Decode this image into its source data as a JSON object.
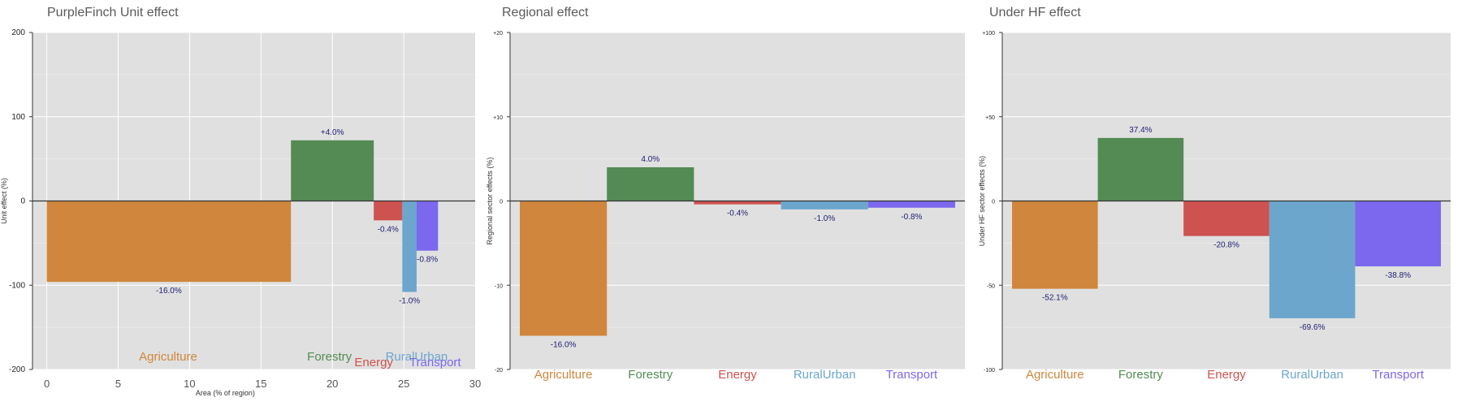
{
  "colors": {
    "Agriculture": "#D0863C",
    "Forestry": "#548B54",
    "Energy": "#CD5250",
    "RuralUrban": "#6CA6CD",
    "Transport": "#7B68EE",
    "panel_bg": "#E0E0E0",
    "label_text": "#1C1C72",
    "title_text": "#5A5A5A"
  },
  "chart_data": [
    {
      "type": "bar",
      "title": "PurpleFinch Unit effect",
      "xlabel": "Area (% of region)",
      "ylabel": "Unit effect (%)",
      "xlim": [
        -1,
        30
      ],
      "ylim": [
        -200,
        200
      ],
      "xticks": [
        0,
        5,
        10,
        15,
        20,
        25,
        30
      ],
      "yticks": [
        200,
        100,
        0,
        -100,
        -200
      ],
      "ytick_labels": [
        "200",
        "100",
        "0",
        "-100",
        "-200"
      ],
      "grid": true,
      "bars": [
        {
          "sector": "Agriculture",
          "x0": 0,
          "x1": 17.1,
          "value": -96,
          "label": "-16.0%"
        },
        {
          "sector": "Forestry",
          "x0": 17.1,
          "x1": 22.9,
          "value": 72,
          "label": "+4.0%"
        },
        {
          "sector": "Energy",
          "x0": 22.9,
          "x1": 24.9,
          "value": -23,
          "label": "-0.4%"
        },
        {
          "sector": "RuralUrban",
          "x0": 24.9,
          "x1": 25.9,
          "value": -108,
          "label": "-1.0%"
        },
        {
          "sector": "Transport",
          "x0": 25.9,
          "x1": 27.4,
          "value": -59,
          "label": "-0.8%"
        }
      ],
      "categories": [
        "Agriculture",
        "Forestry",
        "Energy",
        "RuralUrban",
        "Transport"
      ]
    },
    {
      "type": "bar",
      "title": "Regional effect",
      "xlabel": "",
      "ylabel": "Regional sector effects (%)",
      "ylim": [
        -20,
        20
      ],
      "yticks": [
        20,
        10,
        0,
        -10,
        -20
      ],
      "ytick_labels": [
        "+20",
        "+10",
        "0",
        "-10",
        "-20"
      ],
      "grid": true,
      "categories": [
        "Agriculture",
        "Forestry",
        "Energy",
        "RuralUrban",
        "Transport"
      ],
      "values": [
        -16.0,
        4.0,
        -0.4,
        -1.0,
        -0.8
      ],
      "labels": [
        "-16.0%",
        "4.0%",
        "-0.4%",
        "-1.0%",
        "-0.8%"
      ]
    },
    {
      "type": "bar",
      "title": "Under HF effect",
      "xlabel": "",
      "ylabel": "Under HF sector effects (%)",
      "ylim": [
        -100,
        100
      ],
      "yticks": [
        100,
        50,
        0,
        -50,
        -100
      ],
      "ytick_labels": [
        "+100",
        "+50",
        "0",
        "-50",
        "-100"
      ],
      "grid": true,
      "categories": [
        "Agriculture",
        "Forestry",
        "Energy",
        "RuralUrban",
        "Transport"
      ],
      "values": [
        -52.1,
        37.4,
        -20.8,
        -69.6,
        -38.8
      ],
      "labels": [
        "-52.1%",
        "37.4%",
        "-20.8%",
        "-69.6%",
        "-38.8%"
      ]
    }
  ]
}
